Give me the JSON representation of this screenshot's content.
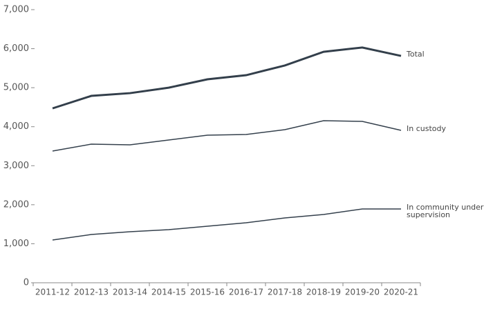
{
  "chart_data": {
    "type": "line",
    "categories": [
      "2011-12",
      "2012-13",
      "2013-14",
      "2014-15",
      "2015-16",
      "2016-17",
      "2017-18",
      "2018-19",
      "2019-20",
      "2020-21"
    ],
    "series": [
      {
        "name": "Total",
        "color": "#333f4b",
        "values": [
          4470,
          4790,
          4860,
          5000,
          5215,
          5320,
          5570,
          5920,
          6030,
          5815
        ]
      },
      {
        "name": "In custody",
        "color": "#333f4b",
        "values": [
          3376,
          3553,
          3535,
          3660,
          3783,
          3800,
          3924,
          4154,
          4136,
          3906
        ]
      },
      {
        "name": "In community under supervision",
        "color": "#333f4b",
        "values": [
          1096,
          1237,
          1308,
          1361,
          1450,
          1538,
          1662,
          1750,
          1891,
          1891
        ]
      }
    ],
    "ylim": [
      0,
      7000
    ],
    "yticks": [
      0,
      {
        "value": 1000,
        "label": "1,000"
      },
      {
        "value": 2000,
        "label": "2,000"
      },
      {
        "value": 3000,
        "label": "3,000"
      },
      {
        "value": 4000,
        "label": "4,000"
      },
      {
        "value": 5000,
        "label": "5,000"
      },
      {
        "value": 6000,
        "label": "6,000"
      },
      {
        "value": 7000,
        "label": "7,000"
      }
    ],
    "grid": false
  }
}
